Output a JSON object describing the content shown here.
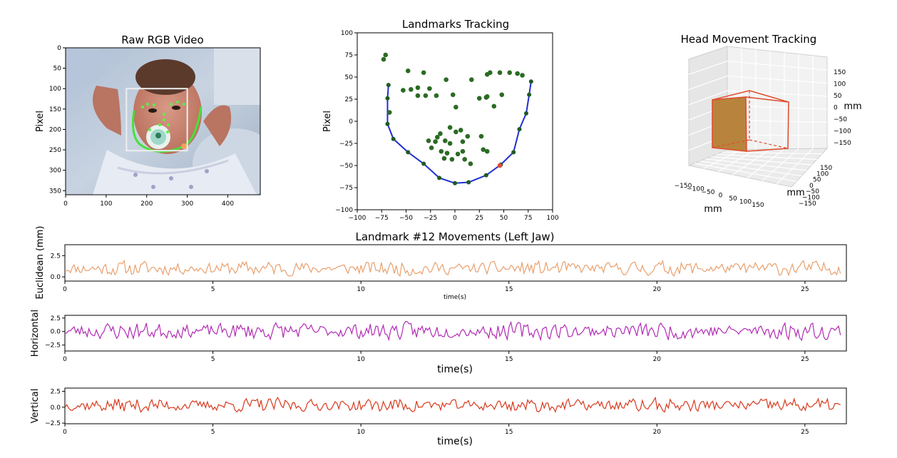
{
  "chart_data": [
    {
      "id": "rgb",
      "type": "image",
      "title": "Raw RGB Video",
      "ylabel": "Pixel",
      "xlim": [
        0,
        480
      ],
      "ylim": [
        0,
        360
      ],
      "x_ticks": [
        0,
        100,
        200,
        300,
        400
      ],
      "y_ticks": [
        0,
        50,
        100,
        150,
        200,
        250,
        300,
        350
      ],
      "bounding_box_data": {
        "x0": 150,
        "y0": 100,
        "x1": 300,
        "y1": 252
      }
    },
    {
      "id": "landmarks",
      "type": "scatter",
      "title": "Landmarks Tracking",
      "ylabel": "Pixel",
      "xlim": [
        -100,
        100
      ],
      "ylim": [
        -100,
        100
      ],
      "x_ticks": [
        -100,
        -75,
        -50,
        -25,
        0,
        25,
        50,
        75,
        100
      ],
      "y_ticks": [
        100,
        75,
        50,
        25,
        0,
        -25,
        -50,
        -75,
        -100
      ],
      "jaw": [
        [
          -68,
          41
        ],
        [
          -69,
          26
        ],
        [
          -69,
          -3
        ],
        [
          -63,
          -20
        ],
        [
          -48,
          -35
        ],
        [
          -32,
          -48
        ],
        [
          -16,
          -64
        ],
        [
          0,
          -70
        ],
        [
          14,
          -69
        ],
        [
          32,
          -61
        ],
        [
          47,
          -49
        ],
        [
          60,
          -35
        ],
        [
          66,
          -9
        ],
        [
          73,
          9
        ],
        [
          76,
          30
        ],
        [
          78,
          45
        ]
      ],
      "highlight": [
        46,
        -50
      ],
      "points": [
        [
          -73,
          70
        ],
        [
          -71,
          75
        ],
        [
          -67,
          10
        ],
        [
          -53,
          35
        ],
        [
          -48,
          57
        ],
        [
          -45,
          36
        ],
        [
          -38,
          29
        ],
        [
          -38,
          38
        ],
        [
          -32,
          55
        ],
        [
          -30,
          29
        ],
        [
          -26,
          37
        ],
        [
          -19,
          29
        ],
        [
          -9,
          47
        ],
        [
          -2,
          30
        ],
        [
          -20,
          -23
        ],
        [
          -15,
          -14
        ],
        [
          -10,
          -22
        ],
        [
          -5,
          -7
        ],
        [
          -5,
          -25
        ],
        [
          1,
          -12
        ],
        [
          1,
          16
        ],
        [
          6,
          -10
        ],
        [
          8,
          -23
        ],
        [
          10,
          -43
        ],
        [
          13,
          -17
        ],
        [
          16,
          -48
        ],
        [
          -27,
          -22
        ],
        [
          -24,
          -30
        ],
        [
          -18,
          -18
        ],
        [
          -14,
          -34
        ],
        [
          -11,
          -42
        ],
        [
          -8,
          -36
        ],
        [
          -3,
          -43
        ],
        [
          3,
          -37
        ],
        [
          8,
          -34
        ],
        [
          27,
          -17
        ],
        [
          29,
          -32
        ],
        [
          33,
          -34
        ],
        [
          17,
          47
        ],
        [
          25,
          26
        ],
        [
          33,
          28
        ],
        [
          33,
          53
        ],
        [
          36,
          55
        ],
        [
          40,
          17
        ],
        [
          46,
          55
        ],
        [
          48,
          30
        ],
        [
          56,
          55
        ],
        [
          64,
          54
        ],
        [
          69,
          52
        ],
        [
          32,
          27
        ]
      ]
    },
    {
      "id": "head3d",
      "type": "3d",
      "title": "Head Movement Tracking",
      "x_label": "mm",
      "y_label": "mm",
      "z_label": "mm",
      "x_ticks": [
        "−150",
        "−100",
        "−50",
        "0",
        "50",
        "100",
        "150"
      ],
      "y_ticks": [
        "150",
        "100",
        "50",
        "0",
        "−50",
        "−100",
        "−150"
      ],
      "z_ticks": [
        "150",
        "100",
        "50",
        "0",
        "−50",
        "−100",
        "−150"
      ]
    },
    {
      "id": "euclid",
      "type": "line",
      "title": "Landmark #12 Movements (Left Jaw)",
      "ylabel": "Euclidean (mm)",
      "xlabel": "time(s)",
      "color": "#e8a06f",
      "xlim": [
        0,
        26.4
      ],
      "ylim": [
        -0.5,
        3.8
      ],
      "x_ticks": [
        0,
        5,
        10,
        15,
        20,
        25
      ],
      "y_ticks": [
        2.5,
        0.0
      ],
      "y_tick_labels": [
        "2.5",
        "0.0"
      ],
      "duration": 26.2,
      "n_points": 420,
      "seed": 11,
      "mean": 1.0,
      "amplitude": 0.55,
      "min": 0.1,
      "max": 2.9
    },
    {
      "id": "horiz",
      "type": "line",
      "ylabel": "Horizontal",
      "xlabel": "time(s)",
      "color": "#b12bb4",
      "xlim": [
        0,
        26.4
      ],
      "ylim": [
        -3.6,
        3.0
      ],
      "x_ticks": [
        0,
        5,
        10,
        15,
        20,
        25
      ],
      "y_ticks": [
        2.5,
        0.0,
        -2.5
      ],
      "y_tick_labels": [
        "2.5",
        "0.0",
        "−2.5"
      ],
      "duration": 26.2,
      "n_points": 420,
      "seed": 23,
      "mean": 0.1,
      "amplitude": 1.0,
      "min": -2.4,
      "max": 2.6
    },
    {
      "id": "vert",
      "type": "line",
      "ylabel": "Vertical",
      "xlabel": "time(s)",
      "color": "#d83a1d",
      "xlim": [
        0,
        26.4
      ],
      "ylim": [
        -2.6,
        3.0
      ],
      "x_ticks": [
        0,
        5,
        10,
        15,
        20,
        25
      ],
      "y_ticks": [
        2.5,
        0.0,
        -2.5
      ],
      "y_tick_labels": [
        "2.5",
        "0.0",
        "−2.5"
      ],
      "duration": 26.2,
      "n_points": 420,
      "seed": 37,
      "mean": 0.3,
      "amplitude": 0.7,
      "min": -1.6,
      "max": 2.0
    }
  ]
}
